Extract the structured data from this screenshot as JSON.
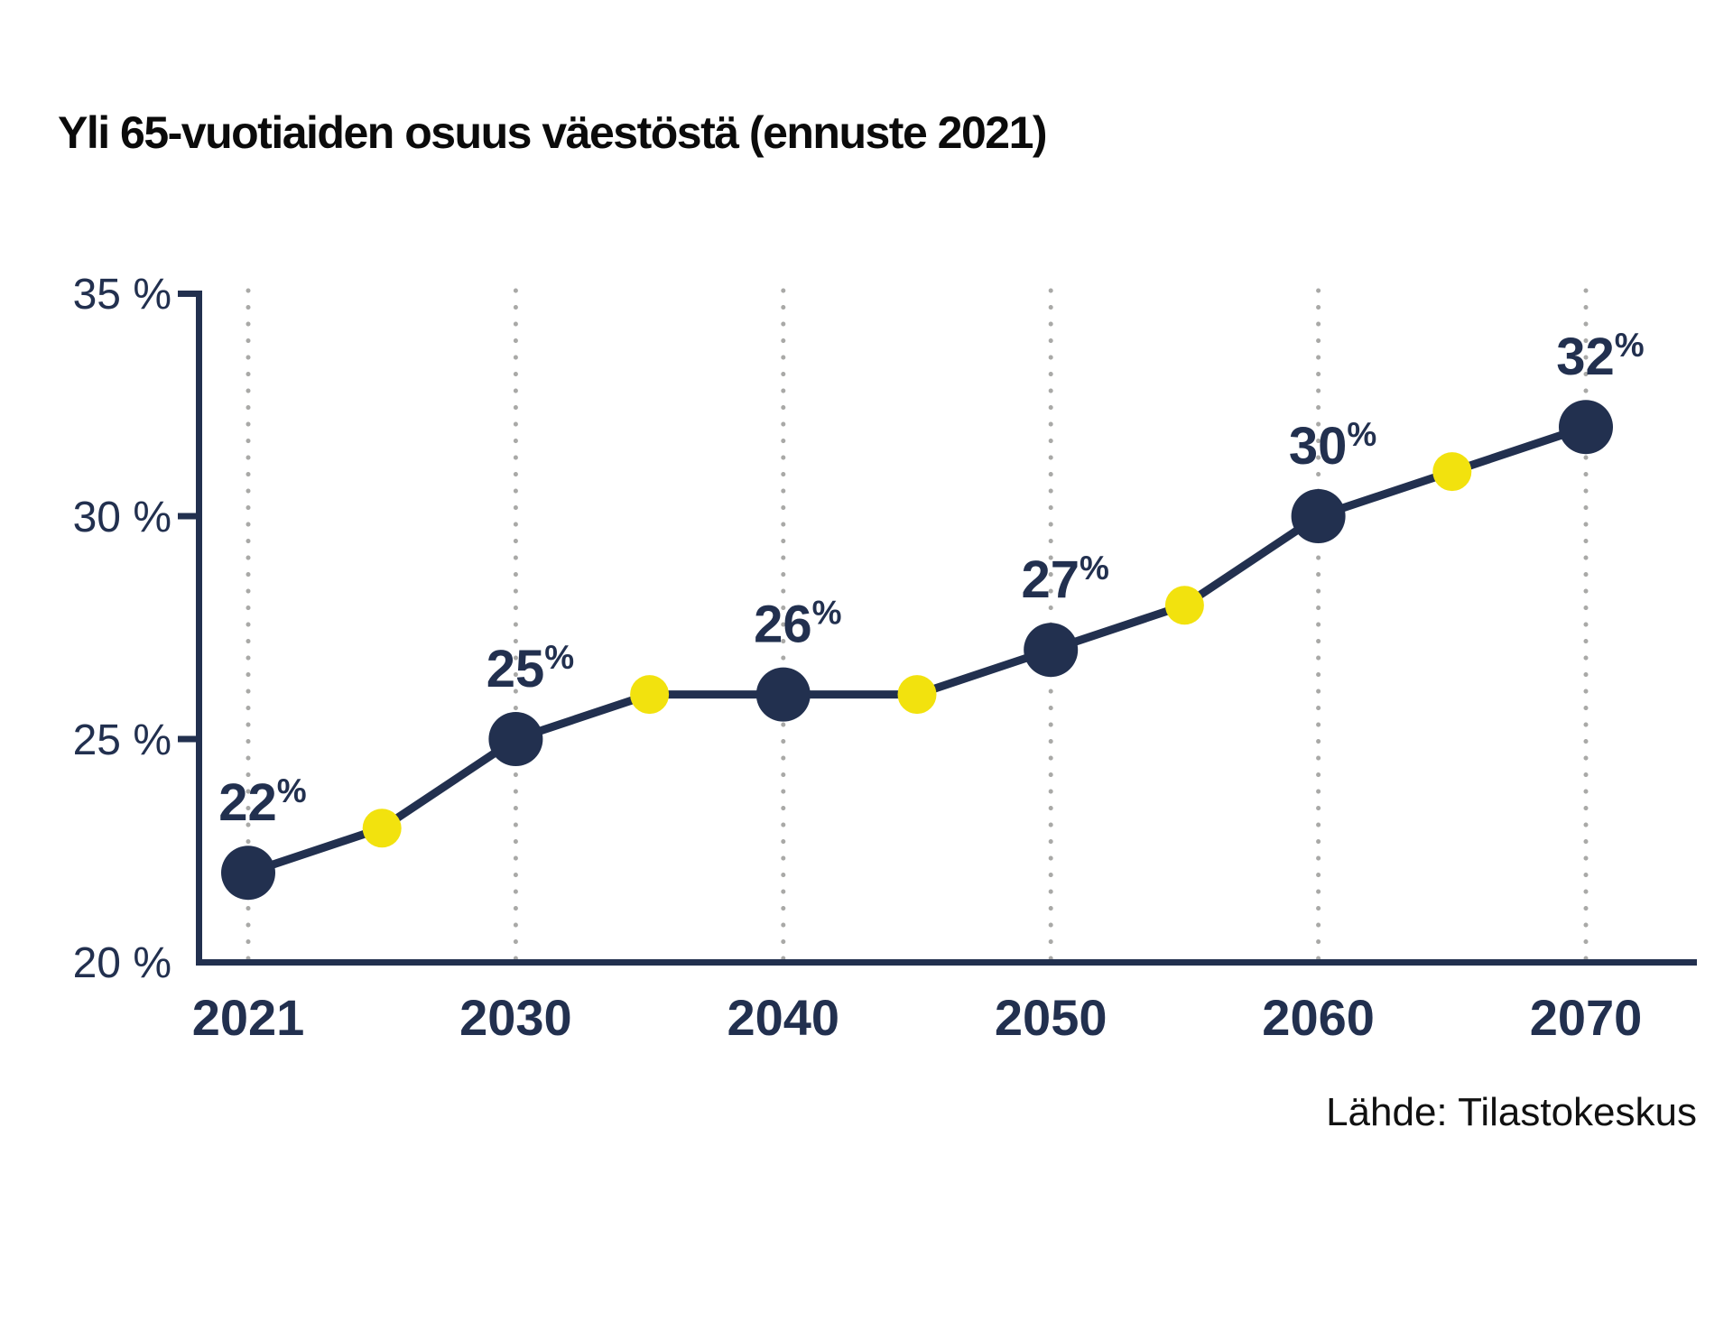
{
  "header": {
    "title": "Yli 65-vuotiaiden osuus väestöstä (ennuste 2021)"
  },
  "footer": {
    "source": "Lähde: Tilastokeskus"
  },
  "colors": {
    "navy": "#22304f",
    "yellow": "#f2e20e",
    "gridline_gray": "#a9a9a7",
    "title_black": "#0b0b0b",
    "background": "#ffffff"
  },
  "chart_data": {
    "type": "line",
    "title": "Yli 65-vuotiaiden osuus väestöstä (ennuste 2021)",
    "source": "Lähde: Tilastokeskus",
    "x": [
      2021,
      2025,
      2030,
      2035,
      2040,
      2045,
      2050,
      2055,
      2060,
      2065,
      2070
    ],
    "values": [
      22,
      23,
      25,
      26,
      26,
      26,
      27,
      28,
      30,
      31,
      32
    ],
    "point_style": [
      "major",
      "minor",
      "major",
      "minor",
      "major",
      "minor",
      "major",
      "minor",
      "major",
      "minor",
      "major"
    ],
    "point_labels": [
      "22",
      "",
      "25",
      "",
      "26",
      "",
      "27",
      "",
      "30",
      "",
      "32"
    ],
    "percent_suffix": "%",
    "x_axis": {
      "tick_labels": [
        "2021",
        "2030",
        "2040",
        "2050",
        "2060",
        "2070"
      ],
      "tick_years": [
        2021,
        2030,
        2040,
        2050,
        2060,
        2070
      ]
    },
    "y_axis": {
      "tick_labels": [
        "35 %",
        "30 %",
        "25 %",
        "20 %"
      ],
      "tick_values": [
        35,
        30,
        25,
        20
      ],
      "ylim": [
        20,
        35
      ]
    },
    "grid": "dotted-vertical",
    "legend": "none"
  }
}
